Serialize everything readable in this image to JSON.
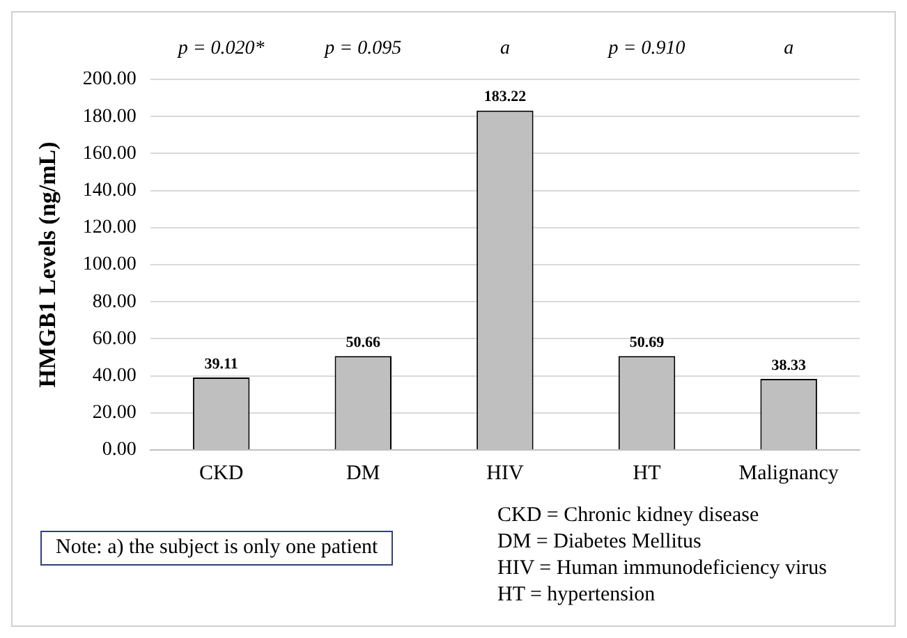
{
  "chart_data": {
    "type": "bar",
    "ylabel": "HMGB1 Levels (ng/mL)",
    "categories": [
      "CKD",
      "DM",
      "HIV",
      "HT",
      "Malignancy"
    ],
    "values": [
      39.11,
      50.66,
      183.22,
      50.69,
      38.33
    ],
    "color": "#bfbfbf",
    "data_labels": true,
    "ylim": [
      0,
      200
    ],
    "yticks": [
      {
        "value": 0,
        "label": "0.00"
      },
      {
        "value": 20,
        "label": "20.00"
      },
      {
        "value": 40,
        "label": "40.00"
      },
      {
        "value": 60,
        "label": "60.00"
      },
      {
        "value": 80,
        "label": "80.00"
      },
      {
        "value": 100,
        "label": "100.00"
      },
      {
        "value": 120,
        "label": "120.00"
      },
      {
        "value": 140,
        "label": "140.00"
      },
      {
        "value": 160,
        "label": "160.00"
      },
      {
        "value": 180,
        "label": "180.00"
      },
      {
        "value": 200,
        "label": "200.00"
      }
    ],
    "grid": "y",
    "legend": false,
    "annotations": [
      "p = 0.020*",
      "p = 0.095",
      "a",
      "p = 0.910",
      "a",
      "Note: a) the subject is only one patient",
      "CKD = Chronic kidney disease",
      "DM = Diabetes Mellitus",
      "HIV = Human immunodeficiency virus",
      "HT = hypertension"
    ]
  }
}
